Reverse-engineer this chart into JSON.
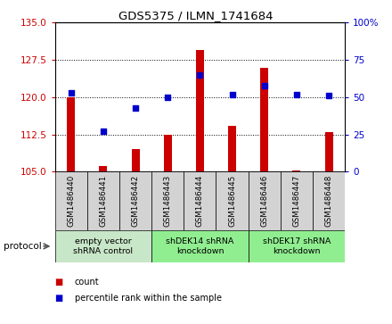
{
  "title": "GDS5375 / ILMN_1741684",
  "samples": [
    "GSM1486440",
    "GSM1486441",
    "GSM1486442",
    "GSM1486443",
    "GSM1486444",
    "GSM1486445",
    "GSM1486446",
    "GSM1486447",
    "GSM1486448"
  ],
  "bar_values": [
    120.0,
    106.2,
    109.5,
    112.5,
    129.5,
    114.2,
    126.0,
    105.2,
    113.0
  ],
  "percentile_values": [
    53,
    27,
    43,
    50,
    65,
    52,
    58,
    52,
    51
  ],
  "bar_color": "#cc0000",
  "dot_color": "#0000cc",
  "ylim_left": [
    105,
    135
  ],
  "ylim_right": [
    0,
    100
  ],
  "yticks_left": [
    105,
    112.5,
    120,
    127.5,
    135
  ],
  "yticks_right": [
    0,
    25,
    50,
    75,
    100
  ],
  "grid_values": [
    112.5,
    120,
    127.5
  ],
  "protocols": [
    {
      "label": "empty vector\nshRNA control",
      "start": 0,
      "end": 3,
      "color": "#c8e6c8"
    },
    {
      "label": "shDEK14 shRNA\nknockdown",
      "start": 3,
      "end": 6,
      "color": "#90ee90"
    },
    {
      "label": "shDEK17 shRNA\nknockdown",
      "start": 6,
      "end": 9,
      "color": "#90ee90"
    }
  ],
  "sample_box_color": "#d3d3d3",
  "legend_count_label": "count",
  "legend_pct_label": "percentile rank within the sample",
  "protocol_label": "protocol"
}
